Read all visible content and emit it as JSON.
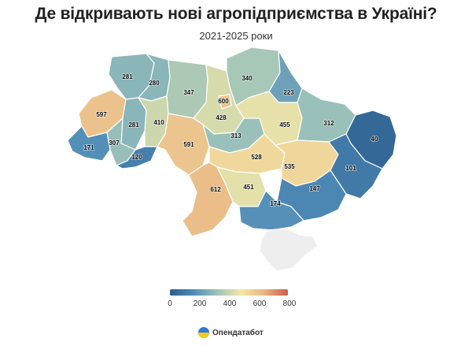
{
  "header": {
    "title": "Де відкривають нові агропідприємства в Україні?",
    "subtitle": "2021-2025 роки"
  },
  "legend": {
    "ticks": [
      "0",
      "200",
      "400",
      "600",
      "800"
    ],
    "stops": [
      "#2b5c8a",
      "#4f8bb8",
      "#9dc3b9",
      "#f3e7a6",
      "#e9b583",
      "#cf5a4a"
    ]
  },
  "brand": {
    "name": "Опендатабот",
    "logo_icon": "opendatabot-logo-icon"
  },
  "regions": [
    {
      "id": "volyn",
      "value": 281,
      "label": "281"
    },
    {
      "id": "rivne",
      "value": 280,
      "label": "280"
    },
    {
      "id": "zhytomyr",
      "value": 347,
      "label": "347"
    },
    {
      "id": "kyiv-city",
      "value": 600,
      "label": "600"
    },
    {
      "id": "chernihiv",
      "value": 340,
      "label": "340"
    },
    {
      "id": "sumy",
      "value": 223,
      "label": "223"
    },
    {
      "id": "lviv",
      "value": 597,
      "label": "597"
    },
    {
      "id": "ternopil",
      "value": 281,
      "label": "281"
    },
    {
      "id": "khmelnytskyi",
      "value": 410,
      "label": "410"
    },
    {
      "id": "kyiv-oblast",
      "value": 428,
      "label": "428"
    },
    {
      "id": "poltava",
      "value": 455,
      "label": "455"
    },
    {
      "id": "kharkiv",
      "value": 312,
      "label": "312"
    },
    {
      "id": "luhansk",
      "value": 40,
      "label": "40"
    },
    {
      "id": "zakarpattia",
      "value": 171,
      "label": "171"
    },
    {
      "id": "ivano-frankivsk",
      "value": 307,
      "label": "307"
    },
    {
      "id": "chernivtsi",
      "value": 120,
      "label": "120"
    },
    {
      "id": "vinnytsia",
      "value": 591,
      "label": "591"
    },
    {
      "id": "cherkasy",
      "value": 313,
      "label": "313"
    },
    {
      "id": "kirovohrad",
      "value": 528,
      "label": "528"
    },
    {
      "id": "dnipropetrovsk",
      "value": 535,
      "label": "535"
    },
    {
      "id": "donetsk",
      "value": 101,
      "label": "101"
    },
    {
      "id": "odesa",
      "value": 612,
      "label": "612"
    },
    {
      "id": "mykolaiv",
      "value": 451,
      "label": "451"
    },
    {
      "id": "zaporizhzhia",
      "value": 147,
      "label": "147"
    },
    {
      "id": "kherson",
      "value": 174,
      "label": "174"
    },
    {
      "id": "crimea",
      "value": null,
      "label": ""
    }
  ]
}
